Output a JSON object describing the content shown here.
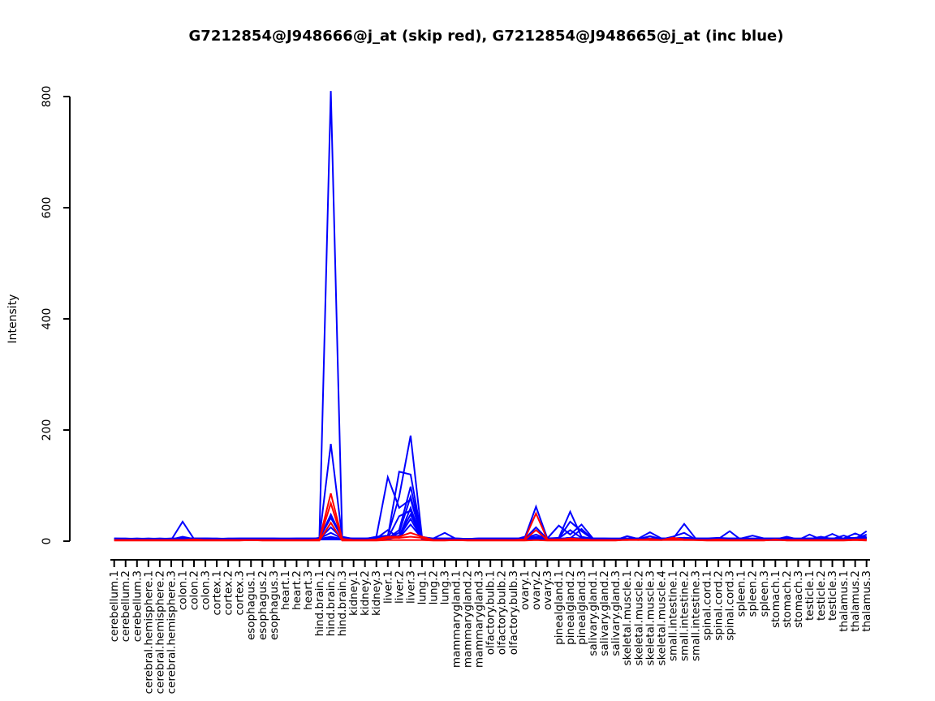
{
  "chart_data": {
    "type": "line",
    "title": "G7212854@J948666@j_at (skip red), G7212854@J948665@j_at (inc blue)",
    "xlabel": "",
    "ylabel": "Intensity",
    "ylim": [
      0,
      810
    ],
    "yticks": [
      0,
      200,
      400,
      600,
      800
    ],
    "x_tick_rotation": 90,
    "grid": false,
    "legend_position": "none",
    "colors": {
      "inc_probe": "#0000ff",
      "skip_probe": "#ff0000",
      "axis": "#000000"
    },
    "categories": [
      "cerebellum.1",
      "cerebellum.2",
      "cerebellum.3",
      "cerebral.hemisphere.1",
      "cerebral.hemisphere.2",
      "cerebral.hemisphere.3",
      "colon.1",
      "colon.2",
      "colon.3",
      "cortex.1",
      "cortex.2",
      "cortex.3",
      "esophagus.1",
      "esophagus.2",
      "esophagus.3",
      "heart.1",
      "heart.2",
      "heart.3",
      "hind.brain.1",
      "hind.brain.2",
      "hind.brain.3",
      "kidney.1",
      "kidney.2",
      "kidney.3",
      "liver.1",
      "liver.2",
      "liver.3",
      "lung.1",
      "lung.2",
      "lung.3",
      "mammarygland.1",
      "mammarygland.2",
      "mammarygland.3",
      "olfactory.bulb.1",
      "olfactory.bulb.2",
      "olfactory.bulb.3",
      "ovary.1",
      "ovary.2",
      "ovary.3",
      "pinealgland.1",
      "pinealgland.2",
      "pinealgland.3",
      "salivary.gland.1",
      "salivary.gland.2",
      "salivary.gland.3",
      "skeletal.muscle.1",
      "skeletal.muscle.2",
      "skeletal.muscle.3",
      "skeletal.muscle.4",
      "small.intestine.1",
      "small.intestine.2",
      "small.intestine.3",
      "spinal.cord.1",
      "spinal.cord.2",
      "spinal.cord.3",
      "spleen.1",
      "spleen.2",
      "spleen.3",
      "stomach.1",
      "stomach.2",
      "stomach.3",
      "testicle.1",
      "testicle.2",
      "testicle.3",
      "thalamus.1",
      "thalamus.2",
      "thalamus.3"
    ],
    "series": [
      {
        "name": "blue.1",
        "probe": "G7212854@J948665@j_at",
        "color": "#0000ff",
        "values": [
          3,
          3,
          2,
          3,
          3,
          3,
          8,
          4,
          3,
          3,
          3,
          3,
          3,
          3,
          3,
          3,
          3,
          3,
          6,
          810,
          8,
          4,
          3,
          5,
          20,
          6,
          30,
          5,
          3,
          4,
          3,
          3,
          3,
          4,
          4,
          4,
          5,
          12,
          4,
          4,
          6,
          4,
          3,
          3,
          3,
          4,
          5,
          4,
          5,
          4,
          6,
          4,
          3,
          4,
          3,
          3,
          4,
          3,
          4,
          3,
          3,
          4,
          4,
          4,
          5,
          6,
          8
        ]
      },
      {
        "name": "blue.2",
        "probe": "G7212854@J948665@j_at",
        "color": "#0000ff",
        "values": [
          4,
          4,
          4,
          4,
          3,
          4,
          5,
          4,
          4,
          4,
          4,
          4,
          4,
          4,
          4,
          4,
          4,
          4,
          5,
          175,
          6,
          4,
          4,
          8,
          10,
          80,
          190,
          8,
          4,
          4,
          4,
          4,
          4,
          4,
          4,
          4,
          5,
          62,
          5,
          6,
          53,
          8,
          4,
          4,
          4,
          4,
          4,
          5,
          4,
          5,
          5,
          4,
          4,
          5,
          4,
          4,
          4,
          4,
          4,
          4,
          4,
          5,
          4,
          4,
          4,
          5,
          6
        ]
      },
      {
        "name": "blue.3",
        "probe": "G7212854@J948665@j_at",
        "color": "#0000ff",
        "values": [
          2,
          2,
          2,
          2,
          2,
          2,
          35,
          4,
          2,
          2,
          2,
          2,
          2,
          2,
          2,
          2,
          2,
          2,
          3,
          3,
          3,
          2,
          3,
          8,
          115,
          60,
          75,
          6,
          3,
          3,
          2,
          2,
          2,
          3,
          3,
          3,
          3,
          4,
          3,
          3,
          3,
          3,
          2,
          2,
          2,
          3,
          3,
          3,
          3,
          8,
          15,
          3,
          3,
          4,
          18,
          2,
          3,
          2,
          2,
          2,
          2,
          3,
          3,
          3,
          3,
          4,
          12
        ]
      },
      {
        "name": "blue.4",
        "probe": "G7212854@J948665@j_at",
        "color": "#0000ff",
        "values": [
          5,
          5,
          4,
          5,
          4,
          5,
          5,
          5,
          5,
          4,
          5,
          5,
          5,
          5,
          5,
          5,
          5,
          5,
          5,
          42,
          6,
          5,
          5,
          6,
          8,
          125,
          120,
          7,
          5,
          5,
          5,
          4,
          5,
          5,
          5,
          5,
          5,
          6,
          5,
          28,
          12,
          30,
          5,
          5,
          5,
          5,
          5,
          5,
          5,
          5,
          6,
          5,
          5,
          6,
          5,
          5,
          5,
          5,
          5,
          5,
          4,
          5,
          5,
          5,
          5,
          6,
          5
        ]
      },
      {
        "name": "blue.5",
        "probe": "G7212854@J948665@j_at",
        "color": "#0000ff",
        "values": [
          3,
          3,
          3,
          3,
          3,
          3,
          3,
          4,
          3,
          3,
          3,
          3,
          3,
          3,
          3,
          3,
          3,
          3,
          4,
          48,
          5,
          3,
          3,
          4,
          5,
          20,
          98,
          5,
          3,
          3,
          3,
          3,
          3,
          3,
          3,
          3,
          4,
          25,
          4,
          5,
          35,
          18,
          3,
          3,
          3,
          3,
          4,
          3,
          3,
          4,
          31,
          5,
          3,
          4,
          3,
          3,
          3,
          3,
          3,
          3,
          3,
          4,
          3,
          3,
          3,
          4,
          4
        ]
      },
      {
        "name": "blue.6",
        "probe": "G7212854@J948665@j_at",
        "color": "#0000ff",
        "values": [
          4,
          4,
          4,
          4,
          4,
          4,
          4,
          5,
          4,
          4,
          4,
          4,
          4,
          4,
          4,
          4,
          4,
          4,
          4,
          25,
          5,
          4,
          4,
          4,
          6,
          15,
          80,
          6,
          5,
          15,
          4,
          4,
          4,
          4,
          4,
          4,
          4,
          5,
          4,
          4,
          6,
          5,
          4,
          4,
          4,
          4,
          5,
          16,
          5,
          4,
          5,
          4,
          4,
          5,
          4,
          4,
          4,
          4,
          4,
          4,
          4,
          4,
          4,
          13,
          4,
          4,
          5
        ]
      },
      {
        "name": "blue.7",
        "probe": "G7212854@J948665@j_at",
        "color": "#0000ff",
        "values": [
          2,
          3,
          2,
          2,
          2,
          2,
          3,
          3,
          2,
          2,
          2,
          2,
          2,
          2,
          2,
          2,
          2,
          2,
          3,
          4,
          3,
          2,
          2,
          3,
          4,
          8,
          60,
          4,
          2,
          2,
          2,
          2,
          2,
          2,
          2,
          2,
          8,
          5,
          3,
          3,
          4,
          3,
          2,
          2,
          2,
          9,
          4,
          3,
          5,
          3,
          4,
          3,
          2,
          3,
          2,
          2,
          2,
          2,
          2,
          2,
          2,
          12,
          3,
          3,
          3,
          4,
          18
        ]
      },
      {
        "name": "blue.8",
        "probe": "G7212854@J948665@j_at",
        "color": "#0000ff",
        "values": [
          5,
          4,
          5,
          4,
          5,
          4,
          5,
          5,
          5,
          5,
          4,
          5,
          5,
          5,
          5,
          4,
          5,
          5,
          5,
          15,
          5,
          5,
          5,
          5,
          6,
          10,
          48,
          5,
          5,
          5,
          5,
          4,
          5,
          5,
          5,
          5,
          5,
          8,
          5,
          5,
          20,
          6,
          5,
          5,
          4,
          5,
          5,
          5,
          5,
          5,
          6,
          5,
          5,
          5,
          5,
          5,
          10,
          5,
          5,
          5,
          5,
          5,
          5,
          5,
          5,
          14,
          6
        ]
      },
      {
        "name": "blue.9",
        "probe": "G7212854@J948665@j_at",
        "color": "#0000ff",
        "values": [
          3,
          3,
          3,
          3,
          3,
          3,
          4,
          3,
          3,
          3,
          3,
          3,
          3,
          3,
          3,
          3,
          3,
          3,
          4,
          6,
          4,
          3,
          3,
          3,
          5,
          45,
          55,
          4,
          3,
          3,
          3,
          3,
          3,
          3,
          3,
          3,
          3,
          5,
          3,
          4,
          5,
          22,
          3,
          3,
          3,
          3,
          3,
          4,
          3,
          3,
          4,
          3,
          3,
          3,
          3,
          3,
          3,
          3,
          3,
          8,
          3,
          3,
          3,
          4,
          10,
          3,
          3
        ]
      },
      {
        "name": "blue.10",
        "probe": "G7212854@J948665@j_at",
        "color": "#0000ff",
        "values": [
          4,
          4,
          4,
          4,
          4,
          4,
          4,
          4,
          5,
          4,
          4,
          4,
          4,
          4,
          4,
          4,
          4,
          4,
          4,
          8,
          4,
          4,
          4,
          4,
          5,
          8,
          40,
          4,
          4,
          4,
          4,
          4,
          4,
          4,
          4,
          4,
          4,
          20,
          4,
          4,
          6,
          4,
          4,
          4,
          4,
          4,
          4,
          9,
          4,
          4,
          4,
          4,
          4,
          4,
          4,
          4,
          4,
          4,
          4,
          4,
          4,
          4,
          8,
          4,
          4,
          4,
          6
        ]
      },
      {
        "name": "red.1",
        "probe": "G7212854@J948666@j_at",
        "color": "#ff0000",
        "values": [
          2,
          2,
          2,
          2,
          2,
          2,
          2,
          2,
          2,
          2,
          2,
          2,
          2,
          2,
          2,
          2,
          2,
          2,
          3,
          86,
          4,
          2,
          2,
          3,
          8,
          8,
          15,
          8,
          2,
          2,
          2,
          2,
          2,
          2,
          2,
          2,
          3,
          50,
          3,
          3,
          4,
          3,
          2,
          2,
          2,
          2,
          3,
          2,
          2,
          3,
          2,
          2,
          2,
          3,
          2,
          2,
          2,
          2,
          2,
          2,
          2,
          2,
          2,
          2,
          2,
          3,
          3
        ]
      },
      {
        "name": "red.2",
        "probe": "G7212854@J948666@j_at",
        "color": "#ff0000",
        "values": [
          2,
          2,
          2,
          2,
          2,
          2,
          2,
          3,
          2,
          2,
          2,
          2,
          2,
          2,
          2,
          2,
          2,
          2,
          2,
          68,
          3,
          2,
          2,
          2,
          6,
          6,
          8,
          6,
          2,
          2,
          2,
          2,
          2,
          2,
          2,
          2,
          2,
          20,
          2,
          2,
          5,
          3,
          2,
          2,
          2,
          2,
          2,
          2,
          2,
          2,
          2,
          2,
          2,
          2,
          2,
          2,
          2,
          2,
          2,
          2,
          2,
          2,
          2,
          2,
          2,
          2,
          2
        ]
      },
      {
        "name": "red.3",
        "probe": "G7212854@J948666@j_at",
        "color": "#ff0000",
        "values": [
          1,
          1,
          1,
          1,
          1,
          1,
          1,
          1,
          1,
          1,
          1,
          1,
          2,
          1,
          1,
          1,
          1,
          1,
          1,
          33,
          1,
          1,
          1,
          1,
          2,
          2,
          2,
          2,
          1,
          1,
          2,
          1,
          1,
          1,
          1,
          1,
          1,
          2,
          1,
          1,
          1,
          1,
          1,
          1,
          1,
          3,
          2,
          4,
          2,
          6,
          3,
          2,
          1,
          1,
          1,
          1,
          1,
          1,
          3,
          1,
          1,
          1,
          1,
          1,
          1,
          2,
          1
        ]
      }
    ]
  }
}
